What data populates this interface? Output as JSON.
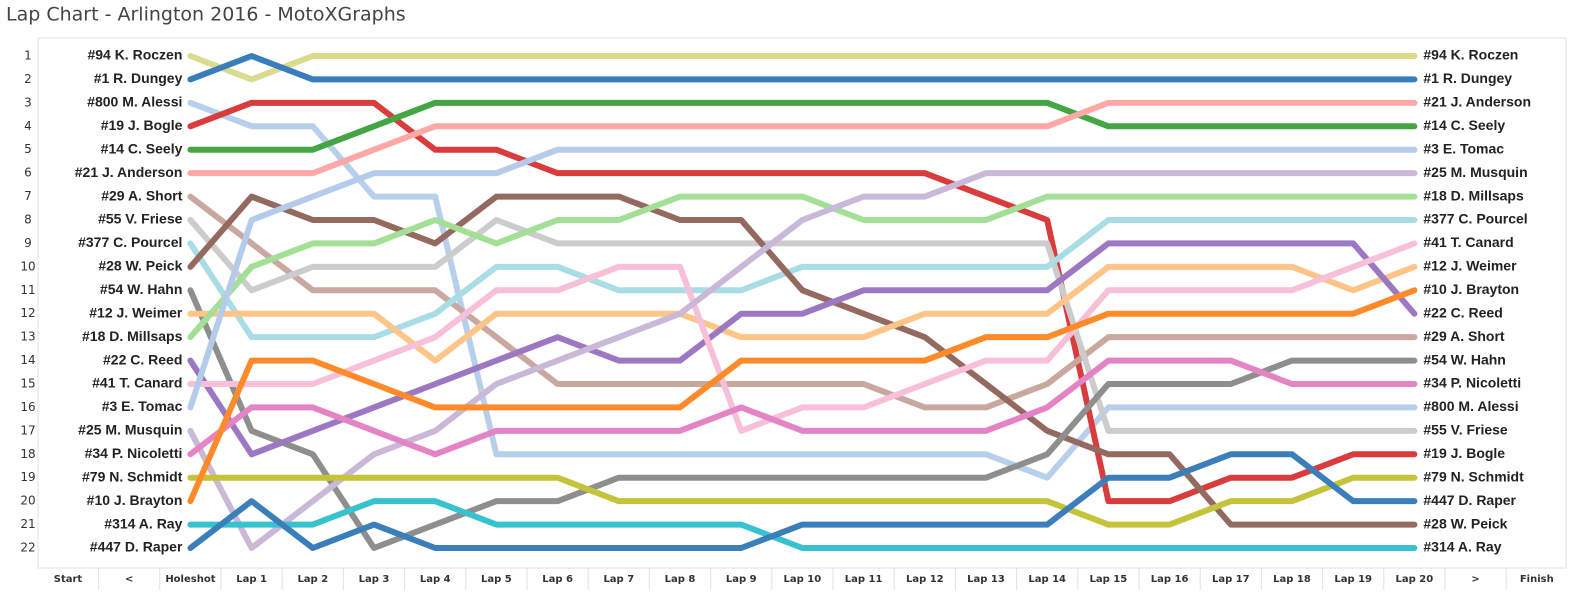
{
  "chart_data": {
    "type": "line",
    "title": "Lap Chart - Arlington 2016 - MotoXGraphs",
    "categories": [
      "Start",
      "<",
      "Holeshot",
      "Lap 1",
      "Lap 2",
      "Lap 3",
      "Lap 4",
      "Lap 5",
      "Lap 6",
      "Lap 7",
      "Lap 8",
      "Lap 9",
      "Lap 10",
      "Lap 11",
      "Lap 12",
      "Lap 13",
      "Lap 14",
      "Lap 15",
      "Lap 16",
      "Lap 17",
      "Lap 18",
      "Lap 19",
      "Lap 20",
      ">",
      "Finish"
    ],
    "ylim": [
      1,
      22
    ],
    "y_inverted": true,
    "yticks": [
      1,
      2,
      3,
      4,
      5,
      6,
      7,
      8,
      9,
      10,
      11,
      12,
      13,
      14,
      15,
      16,
      17,
      18,
      19,
      20,
      21,
      22
    ],
    "series": [
      {
        "name": "#94 K. Roczen",
        "color": "#dbdb8d",
        "values": [
          null,
          null,
          1,
          2,
          1,
          1,
          1,
          1,
          1,
          1,
          1,
          1,
          1,
          1,
          1,
          1,
          1,
          1,
          1,
          1,
          1,
          1,
          1,
          null,
          null
        ]
      },
      {
        "name": "#1 R. Dungey",
        "color": "#3a7dbd",
        "values": [
          null,
          null,
          2,
          1,
          2,
          2,
          2,
          2,
          2,
          2,
          2,
          2,
          2,
          2,
          2,
          2,
          2,
          2,
          2,
          2,
          2,
          2,
          2,
          null,
          null
        ]
      },
      {
        "name": "#800 M. Alessi",
        "color": "#b8cfec",
        "values": [
          null,
          null,
          3,
          4,
          4,
          7,
          7,
          18,
          18,
          18,
          18,
          18,
          18,
          18,
          18,
          18,
          19,
          16,
          16,
          16,
          16,
          16,
          16,
          null,
          null
        ]
      },
      {
        "name": "#19 J. Bogle",
        "color": "#d83c3c",
        "values": [
          null,
          null,
          4,
          3,
          3,
          3,
          5,
          5,
          6,
          6,
          6,
          6,
          6,
          6,
          6,
          7,
          8,
          20,
          20,
          19,
          19,
          18,
          18,
          null,
          null
        ]
      },
      {
        "name": "#14 C. Seely",
        "color": "#45a545",
        "values": [
          null,
          null,
          5,
          5,
          5,
          4,
          3,
          3,
          3,
          3,
          3,
          3,
          3,
          3,
          3,
          3,
          3,
          4,
          4,
          4,
          4,
          4,
          4,
          null,
          null
        ]
      },
      {
        "name": "#21 J. Anderson",
        "color": "#ffa8a6",
        "values": [
          null,
          null,
          6,
          6,
          6,
          5,
          4,
          4,
          4,
          4,
          4,
          4,
          4,
          4,
          4,
          4,
          4,
          3,
          3,
          3,
          3,
          3,
          3,
          null,
          null
        ]
      },
      {
        "name": "#29 A. Short",
        "color": "#c9a8a0",
        "values": [
          null,
          null,
          7,
          9,
          11,
          11,
          11,
          13,
          15,
          15,
          15,
          15,
          15,
          15,
          16,
          16,
          15,
          13,
          13,
          13,
          13,
          13,
          13,
          null,
          null
        ]
      },
      {
        "name": "#55 V. Friese",
        "color": "#cccccc",
        "values": [
          null,
          null,
          8,
          11,
          10,
          10,
          10,
          8,
          9,
          9,
          9,
          9,
          9,
          9,
          9,
          9,
          9,
          17,
          17,
          17,
          17,
          17,
          17,
          null,
          null
        ]
      },
      {
        "name": "#377 C. Pourcel",
        "color": "#a8dde6",
        "values": [
          null,
          null,
          9,
          13,
          13,
          13,
          12,
          10,
          10,
          11,
          11,
          11,
          10,
          10,
          10,
          10,
          10,
          8,
          8,
          8,
          8,
          8,
          8,
          null,
          null
        ]
      },
      {
        "name": "#28 W. Peick",
        "color": "#946a60",
        "values": [
          null,
          null,
          10,
          7,
          8,
          8,
          9,
          7,
          7,
          7,
          8,
          8,
          11,
          12,
          13,
          15,
          17,
          18,
          18,
          21,
          21,
          21,
          21,
          null,
          null
        ]
      },
      {
        "name": "#54 W. Hahn",
        "color": "#8e8e8e",
        "values": [
          null,
          null,
          11,
          17,
          18,
          22,
          21,
          20,
          20,
          19,
          19,
          19,
          19,
          19,
          19,
          19,
          18,
          15,
          15,
          15,
          14,
          14,
          14,
          null,
          null
        ]
      },
      {
        "name": "#12 J. Weimer",
        "color": "#ffc488",
        "values": [
          null,
          null,
          12,
          12,
          12,
          12,
          14,
          12,
          12,
          12,
          12,
          13,
          13,
          13,
          12,
          12,
          12,
          10,
          10,
          10,
          10,
          11,
          10,
          null,
          null
        ]
      },
      {
        "name": "#18 D. Millsaps",
        "color": "#a3e096",
        "values": [
          null,
          null,
          13,
          10,
          9,
          9,
          8,
          9,
          8,
          8,
          7,
          7,
          7,
          8,
          8,
          8,
          7,
          7,
          7,
          7,
          7,
          7,
          7,
          null,
          null
        ]
      },
      {
        "name": "#22 C. Reed",
        "color": "#9c78c2",
        "values": [
          null,
          null,
          14,
          18,
          17,
          16,
          15,
          14,
          13,
          14,
          14,
          12,
          12,
          11,
          11,
          11,
          11,
          9,
          9,
          9,
          9,
          9,
          12,
          null,
          null
        ]
      },
      {
        "name": "#41 T. Canard",
        "color": "#f8bfd8",
        "values": [
          null,
          null,
          15,
          15,
          15,
          14,
          13,
          11,
          11,
          10,
          10,
          17,
          16,
          16,
          15,
          14,
          14,
          11,
          11,
          11,
          11,
          10,
          9,
          null,
          null
        ]
      },
      {
        "name": "#3 E. Tomac",
        "color": "#b4cbea",
        "values": [
          null,
          null,
          16,
          8,
          7,
          6,
          6,
          6,
          5,
          5,
          5,
          5,
          5,
          5,
          5,
          5,
          5,
          5,
          5,
          5,
          5,
          5,
          5,
          null,
          null
        ]
      },
      {
        "name": "#25 M. Musquin",
        "color": "#c9b8d8",
        "values": [
          null,
          null,
          17,
          22,
          20,
          18,
          17,
          15,
          14,
          13,
          12,
          10,
          8,
          7,
          7,
          6,
          6,
          6,
          6,
          6,
          6,
          6,
          6,
          null,
          null
        ]
      },
      {
        "name": "#34 P. Nicoletti",
        "color": "#e484c6",
        "values": [
          null,
          null,
          18,
          16,
          16,
          17,
          18,
          17,
          17,
          17,
          17,
          16,
          17,
          17,
          17,
          17,
          16,
          14,
          14,
          14,
          15,
          15,
          15,
          null,
          null
        ]
      },
      {
        "name": "#79 N. Schmidt",
        "color": "#c4c43a",
        "values": [
          null,
          null,
          19,
          19,
          19,
          19,
          19,
          19,
          19,
          20,
          20,
          20,
          20,
          20,
          20,
          20,
          20,
          21,
          21,
          20,
          20,
          19,
          19,
          null,
          null
        ]
      },
      {
        "name": "#10 J. Brayton",
        "color": "#ff8a2a",
        "values": [
          null,
          null,
          20,
          14,
          14,
          15,
          16,
          16,
          16,
          16,
          16,
          14,
          14,
          14,
          14,
          13,
          13,
          12,
          12,
          12,
          12,
          12,
          11,
          null,
          null
        ]
      },
      {
        "name": "#314 A. Ray",
        "color": "#38c2d0",
        "values": [
          null,
          null,
          21,
          21,
          21,
          20,
          20,
          21,
          21,
          21,
          21,
          21,
          22,
          22,
          22,
          22,
          22,
          22,
          22,
          22,
          22,
          22,
          22,
          null,
          null
        ]
      },
      {
        "name": "#447 D. Raper",
        "color": "#3b7fba",
        "values": [
          null,
          null,
          22,
          20,
          22,
          21,
          22,
          22,
          22,
          22,
          22,
          22,
          21,
          21,
          21,
          21,
          21,
          19,
          19,
          18,
          18,
          20,
          20,
          null,
          null
        ]
      }
    ]
  }
}
